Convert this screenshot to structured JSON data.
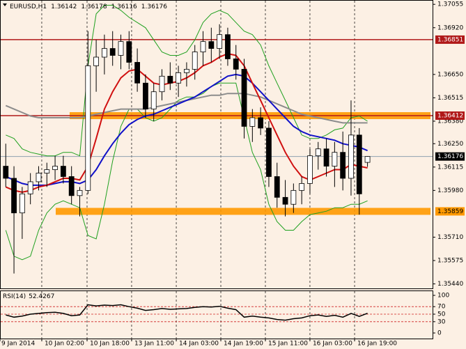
{
  "chart_data": [
    {
      "type": "candlestick",
      "title": "EURUSD,H1",
      "open": [
        1.3612,
        1.3605,
        1.3585,
        1.3596,
        1.3603,
        1.3608,
        1.361,
        1.3612,
        1.3606,
        1.3595,
        1.3598,
        1.367,
        1.3675,
        1.368,
        1.3676,
        1.3684,
        1.3672,
        1.366,
        1.3645,
        1.3655,
        1.3664,
        1.366,
        1.3666,
        1.3668,
        1.3678,
        1.3684,
        1.368,
        1.3688,
        1.3674,
        1.3668,
        1.3635,
        1.364,
        1.3634,
        1.3606,
        1.3594,
        1.359,
        1.3598,
        1.3602,
        1.3618,
        1.3622,
        1.3612,
        1.362,
        1.3605,
        1.363,
        1.36142
      ],
      "high": [
        1.3625,
        1.3612,
        1.36,
        1.3608,
        1.3612,
        1.3614,
        1.3618,
        1.3618,
        1.3612,
        1.36,
        1.369,
        1.3685,
        1.3688,
        1.369,
        1.3688,
        1.369,
        1.368,
        1.3665,
        1.366,
        1.3668,
        1.3672,
        1.367,
        1.3672,
        1.3682,
        1.369,
        1.3692,
        1.3694,
        1.3692,
        1.3682,
        1.3674,
        1.3645,
        1.3646,
        1.3638,
        1.3614,
        1.3604,
        1.3602,
        1.3606,
        1.3622,
        1.3626,
        1.3628,
        1.3626,
        1.3632,
        1.365,
        1.3634,
        1.36178
      ],
      "low": [
        1.36,
        1.355,
        1.357,
        1.359,
        1.3598,
        1.36,
        1.3604,
        1.3602,
        1.359,
        1.3583,
        1.3596,
        1.3655,
        1.3665,
        1.367,
        1.3668,
        1.3668,
        1.3655,
        1.364,
        1.3638,
        1.365,
        1.3656,
        1.3652,
        1.3658,
        1.3662,
        1.367,
        1.3672,
        1.3674,
        1.367,
        1.3662,
        1.3628,
        1.3626,
        1.363,
        1.36,
        1.3588,
        1.3583,
        1.3585,
        1.359,
        1.3596,
        1.361,
        1.3606,
        1.36,
        1.3598,
        1.3595,
        1.3584,
        1.36116
      ],
      "close": [
        1.3605,
        1.3585,
        1.3596,
        1.3603,
        1.3608,
        1.361,
        1.3612,
        1.3606,
        1.3595,
        1.3598,
        1.367,
        1.3675,
        1.368,
        1.3676,
        1.3684,
        1.3672,
        1.366,
        1.3645,
        1.3655,
        1.3664,
        1.366,
        1.3666,
        1.3668,
        1.3678,
        1.3684,
        1.368,
        1.3688,
        1.3674,
        1.3668,
        1.3635,
        1.364,
        1.3634,
        1.3606,
        1.3594,
        1.359,
        1.3598,
        1.3602,
        1.3618,
        1.3622,
        1.3612,
        1.362,
        1.3605,
        1.363,
        1.3596,
        1.36176
      ],
      "series": [
        {
          "color": "#1fa01f",
          "values": [
            1.363,
            1.3628,
            1.3622,
            1.362,
            1.3619,
            1.3618,
            1.3618,
            1.362,
            1.362,
            1.3618,
            1.367,
            1.37,
            1.3705,
            1.3705,
            1.3702,
            1.3698,
            1.3695,
            1.3692,
            1.3685,
            1.3678,
            1.3676,
            1.3676,
            1.3678,
            1.3685,
            1.3695,
            1.37,
            1.3702,
            1.37,
            1.3695,
            1.369,
            1.3688,
            1.3682,
            1.367,
            1.366,
            1.365,
            1.364,
            1.363,
            1.3628,
            1.3628,
            1.363,
            1.3633,
            1.3634,
            1.364,
            1.3641,
            1.3638
          ]
        },
        {
          "color": "#1fa01f",
          "values": [
            1.3575,
            1.356,
            1.3558,
            1.356,
            1.3575,
            1.3585,
            1.359,
            1.3592,
            1.359,
            1.3588,
            1.3572,
            1.357,
            1.359,
            1.3615,
            1.3635,
            1.3645,
            1.3645,
            1.364,
            1.3638,
            1.364,
            1.3645,
            1.365,
            1.3652,
            1.3652,
            1.3654,
            1.3658,
            1.366,
            1.366,
            1.366,
            1.364,
            1.362,
            1.361,
            1.359,
            1.358,
            1.3575,
            1.3575,
            1.358,
            1.3584,
            1.3585,
            1.3586,
            1.3588,
            1.3588,
            1.359,
            1.359,
            1.3592
          ]
        },
        {
          "color": "#8c8c8c",
          "values": [
            1.3647,
            1.3645,
            1.3643,
            1.3641,
            1.364,
            1.364,
            1.364,
            1.364,
            1.364,
            1.364,
            1.3641,
            1.3642,
            1.3643,
            1.3644,
            1.3645,
            1.3645,
            1.3645,
            1.3645,
            1.3646,
            1.3647,
            1.3648,
            1.3649,
            1.365,
            1.3651,
            1.3652,
            1.3653,
            1.3653,
            1.3654,
            1.3654,
            1.3654,
            1.3653,
            1.3652,
            1.365,
            1.3648,
            1.3646,
            1.3644,
            1.3642,
            1.3641,
            1.364,
            1.3639,
            1.3638,
            1.3637,
            1.3637,
            1.3637,
            1.3637
          ]
        },
        {
          "color": "#1010c8",
          "values": [
            1.3606,
            1.3604,
            1.3602,
            1.3601,
            1.3601,
            1.3601,
            1.3602,
            1.3603,
            1.3603,
            1.3602,
            1.3604,
            1.361,
            1.3618,
            1.3625,
            1.3631,
            1.3636,
            1.3639,
            1.3641,
            1.3642,
            1.3644,
            1.3646,
            1.3648,
            1.365,
            1.3652,
            1.3655,
            1.3658,
            1.3661,
            1.3664,
            1.3665,
            1.3664,
            1.366,
            1.3655,
            1.365,
            1.3645,
            1.364,
            1.3635,
            1.3632,
            1.363,
            1.3629,
            1.3628,
            1.3627,
            1.3625,
            1.3624,
            1.3623,
            1.3621
          ]
        },
        {
          "color": "#d01010",
          "values": [
            1.36,
            1.3598,
            1.3597,
            1.3598,
            1.36,
            1.3601,
            1.3603,
            1.3605,
            1.3605,
            1.3604,
            1.3612,
            1.3628,
            1.3645,
            1.3655,
            1.3663,
            1.3667,
            1.3668,
            1.3664,
            1.366,
            1.3659,
            1.366,
            1.3661,
            1.3663,
            1.3666,
            1.367,
            1.3672,
            1.3675,
            1.3677,
            1.3676,
            1.367,
            1.366,
            1.365,
            1.364,
            1.363,
            1.362,
            1.3612,
            1.3606,
            1.3604,
            1.3606,
            1.3608,
            1.361,
            1.361,
            1.3613,
            1.3612,
            1.3611
          ]
        }
      ],
      "zones": [
        {
          "value": 1.36412,
          "color": "#ff9900"
        },
        {
          "value": 1.35859,
          "color": "#ff9900"
        }
      ],
      "levels": [
        {
          "value": 1.36851,
          "color": "#b01818"
        },
        {
          "value": 1.36412,
          "color": "#b01818"
        }
      ],
      "ylim": [
        1.3541,
        1.3708
      ],
      "yticks": [
        1.37055,
        {
          "value": 1.3692,
          "label": "1.36920"
        },
        {
          "value": 1.3665,
          "label": "1.36650"
        },
        1.36515,
        {
          "value": 1.3638,
          "label": "1.36380"
        },
        {
          "value": 1.3625,
          "label": "1.36250"
        },
        1.36115,
        {
          "value": 1.3598,
          "label": "1.35980"
        },
        {
          "value": 1.3571,
          "label": "1.35710"
        },
        1.35575,
        {
          "value": 1.3544,
          "label": "1.35440"
        }
      ],
      "xlim": [
        -0.7,
        52
      ],
      "xticks": [
        {
          "value": -0.7,
          "label": "9 Jan 2014"
        },
        {
          "value": 4.38,
          "label": "10 Jan 02:00"
        },
        {
          "value": 9.89,
          "label": "10 Jan 18:00"
        },
        {
          "value": 15.31,
          "label": "13 Jan 11:00"
        },
        {
          "value": 20.74,
          "label": "14 Jan 03:00"
        },
        {
          "value": 26.16,
          "label": "14 Jan 19:00"
        },
        {
          "value": 31.58,
          "label": "15 Jan 11:00"
        },
        {
          "value": 37.0,
          "label": "16 Jan 03:00"
        },
        {
          "value": 42.43,
          "label": "16 Jan 19:00"
        }
      ]
    },
    {
      "type": "line",
      "title": "RSI(14)",
      "color": "#000000",
      "values": [
        48,
        42,
        45,
        50,
        52,
        54,
        55,
        52,
        46,
        48,
        75,
        72,
        74,
        73,
        75,
        70,
        66,
        60,
        62,
        65,
        63,
        64,
        65,
        68,
        70,
        69,
        71,
        66,
        62,
        42,
        45,
        42,
        40,
        36,
        34,
        38,
        40,
        46,
        48,
        44,
        47,
        42,
        52,
        44,
        52.4267
      ],
      "ylim": [
        0,
        100
      ],
      "yticks": [
        0,
        30,
        50,
        70,
        100
      ]
    }
  ]
}
